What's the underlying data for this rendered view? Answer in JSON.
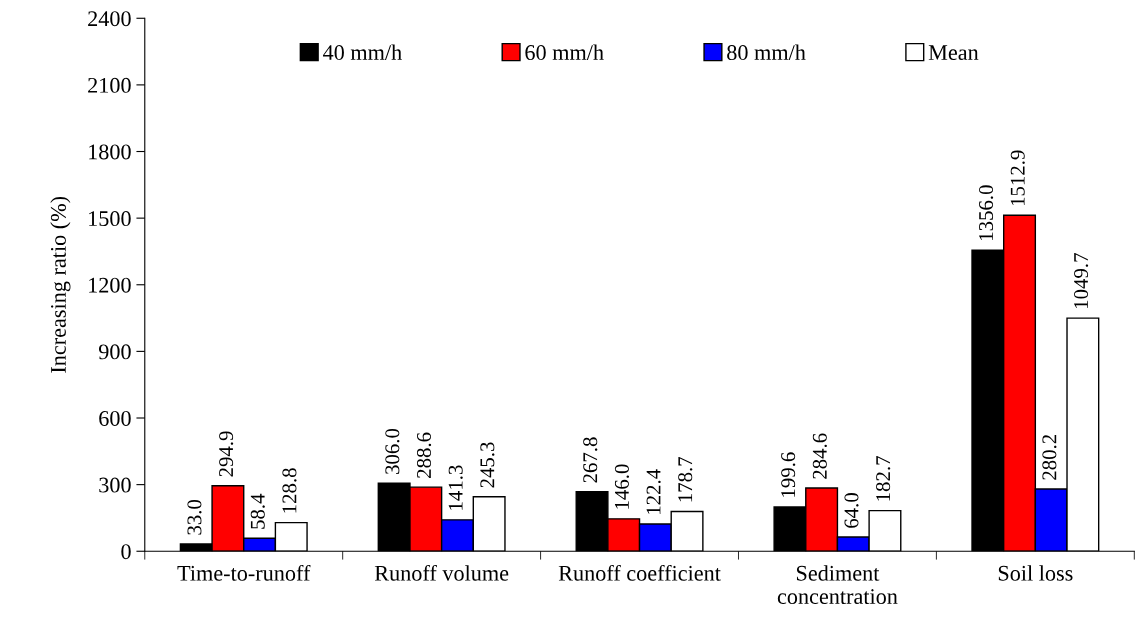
{
  "chart_data": {
    "type": "bar",
    "ylabel": "Increasing ratio (%)",
    "categories": [
      "Time-to-runoff",
      "Runoff volume",
      "Runoff coefficient",
      "Sediment concentration",
      "Soil loss"
    ],
    "series": [
      {
        "name": "40 mm/h",
        "color": "#000000",
        "values": [
          33.0,
          306.0,
          267.8,
          199.6,
          1356.0
        ],
        "value_labels": [
          "33.0",
          "306.0",
          "267.8",
          "199.6",
          "1356.0"
        ]
      },
      {
        "name": "60 mm/h",
        "color": "#ff0000",
        "values": [
          294.9,
          288.6,
          146.0,
          284.6,
          1512.9
        ],
        "value_labels": [
          "294.9",
          "288.6",
          "146.0",
          "284.6",
          "1512.9"
        ]
      },
      {
        "name": "80 mm/h",
        "color": "#0000ff",
        "values": [
          58.4,
          141.3,
          122.4,
          64.0,
          280.2
        ],
        "value_labels": [
          "58.4",
          "141.3",
          "122.4",
          "64.0",
          "280.2"
        ]
      },
      {
        "name": "Mean",
        "color": "#ffffff",
        "values": [
          128.8,
          245.3,
          178.7,
          182.7,
          1049.7
        ],
        "value_labels": [
          "128.8",
          "245.3",
          "178.7",
          "182.7",
          "1049.7"
        ]
      }
    ],
    "ylim": [
      0,
      2400
    ],
    "yticks": [
      0,
      300,
      600,
      900,
      1200,
      1500,
      1800,
      2100,
      2400
    ],
    "grid": false,
    "legend": "top"
  }
}
